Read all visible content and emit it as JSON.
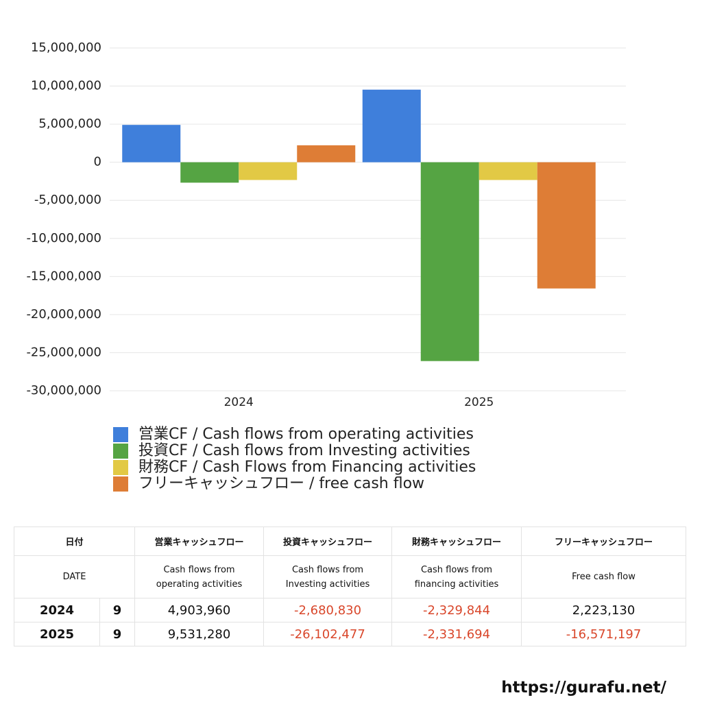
{
  "chart_data": {
    "type": "bar",
    "categories": [
      "2024",
      "2025"
    ],
    "series": [
      {
        "name": "営業CF / Cash flows from operating activities",
        "color": "#3f7fdb",
        "values": [
          4903960,
          9531280
        ]
      },
      {
        "name": "投資CF / Cash flows from Investing activities",
        "color": "#55a443",
        "values": [
          -2680830,
          -26102477
        ]
      },
      {
        "name": "財務CF / Cash Flows from Financing activities",
        "color": "#e2c945",
        "values": [
          -2329844,
          -2331694
        ]
      },
      {
        "name": "フリーキャッシュフロー / free cash flow",
        "color": "#de7d36",
        "values": [
          2223130,
          -16571197
        ]
      }
    ],
    "ylim": [
      -30000000,
      15000000
    ],
    "yticks": [
      {
        "value": 15000000,
        "label": "15,000,000"
      },
      {
        "value": 10000000,
        "label": "10,000,000"
      },
      {
        "value": 5000000,
        "label": "5,000,000"
      },
      0,
      {
        "value": -5000000,
        "label": "-5,000,000"
      },
      {
        "value": -10000000,
        "label": "-10,000,000"
      },
      {
        "value": -15000000,
        "label": "-15,000,000"
      },
      {
        "value": -20000000,
        "label": "-20,000,000"
      },
      {
        "value": -25000000,
        "label": "-25,000,000"
      },
      {
        "value": -30000000,
        "label": "-30,000,000"
      }
    ],
    "grid": true
  },
  "table": {
    "header": [
      "日付",
      "営業キャッシュフロー",
      "投資キャッシュフロー",
      "財務キャッシュフロー",
      "フリーキャッシュフロー"
    ],
    "subheader": [
      "DATE",
      "Cash flows from\noperating activities",
      "Cash flows from\nInvesting activities",
      "Cash flows from\nfinancing activities",
      "Free cash flow"
    ],
    "rows": [
      [
        "2024",
        "9",
        "4,903,960",
        "-2,680,830",
        "-2,329,844",
        "2,223,130"
      ],
      [
        "2025",
        "9",
        "9,531,280",
        "-26,102,477",
        "-2,331,694",
        "-16,571,197"
      ]
    ]
  },
  "footer": "https://gurafu.net/"
}
